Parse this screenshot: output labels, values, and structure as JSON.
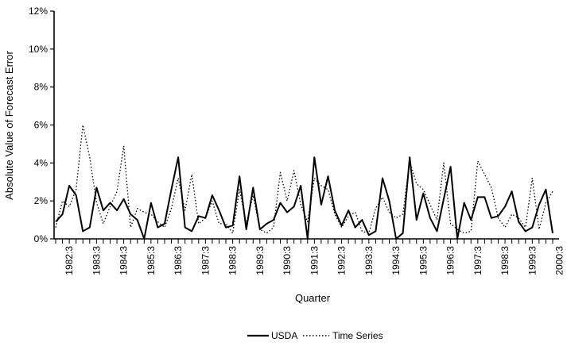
{
  "chart_data": {
    "type": "line",
    "xlabel": "Quarter",
    "ylabel": "Absolute Value of Forecast Error",
    "ylim": [
      0,
      12
    ],
    "y_unit": "%",
    "yticks": [
      0,
      2,
      4,
      6,
      8,
      10,
      12
    ],
    "ytick_labels": [
      "0%",
      "2%",
      "4%",
      "6%",
      "8%",
      "10%",
      "12%"
    ],
    "x_range": [
      "1982:1",
      "2000:4"
    ],
    "xtick_labels": [
      "1982:3",
      "1983:3",
      "1984:3",
      "1985:3",
      "1986:3",
      "1987:3",
      "1988:3",
      "1989:3",
      "1990:3",
      "1991:3",
      "1992:3",
      "1993:3",
      "1994:3",
      "1995:3",
      "1996:3",
      "1997:3",
      "1998:3",
      "1999:3",
      "2000:3"
    ],
    "grid": false,
    "legend_position": "bottom",
    "series": [
      {
        "name": "USDA",
        "line_style": "solid",
        "color": "#000000",
        "values": [
          0.9,
          1.3,
          2.8,
          2.3,
          0.4,
          0.6,
          2.7,
          1.5,
          1.9,
          1.5,
          2.1,
          1.3,
          1.0,
          0.0,
          1.9,
          0.6,
          0.8,
          2.6,
          4.3,
          0.6,
          0.4,
          1.2,
          1.1,
          2.3,
          1.5,
          0.6,
          0.7,
          3.3,
          0.5,
          2.7,
          0.5,
          0.8,
          1.0,
          1.9,
          1.4,
          1.7,
          2.8,
          0.0,
          4.3,
          1.8,
          3.3,
          1.5,
          0.7,
          1.5,
          0.6,
          1.0,
          0.2,
          0.4,
          3.2,
          2.0,
          0.0,
          0.3,
          4.3,
          1.0,
          2.4,
          1.1,
          0.4,
          2.1,
          3.8,
          0.0,
          1.9,
          1.0,
          2.2,
          2.2,
          1.1,
          1.2,
          1.7,
          2.5,
          0.9,
          0.4,
          0.6,
          1.8,
          2.6,
          0.3
        ]
      },
      {
        "name": "Time Series",
        "line_style": "dotted",
        "color": "#000000",
        "values": [
          0.6,
          2.0,
          1.7,
          2.6,
          6.0,
          4.3,
          1.9,
          0.8,
          1.7,
          2.5,
          4.9,
          0.6,
          1.6,
          1.4,
          1.3,
          0.9,
          0.6,
          1.6,
          3.2,
          1.5,
          3.4,
          0.8,
          1.1,
          2.0,
          0.8,
          0.8,
          0.3,
          2.6,
          0.8,
          2.3,
          0.5,
          0.3,
          0.6,
          3.5,
          2.0,
          3.6,
          1.8,
          0.9,
          3.2,
          2.8,
          2.6,
          1.3,
          0.6,
          1.2,
          1.4,
          0.4,
          0.3,
          1.6,
          2.2,
          1.4,
          1.1,
          1.3,
          4.1,
          2.9,
          2.6,
          1.8,
          1.0,
          4.0,
          0.8,
          0.5,
          0.3,
          0.4,
          4.1,
          3.4,
          2.7,
          1.1,
          0.6,
          1.3,
          1.1,
          0.6,
          3.2,
          0.5,
          1.9,
          2.5
        ]
      }
    ]
  }
}
